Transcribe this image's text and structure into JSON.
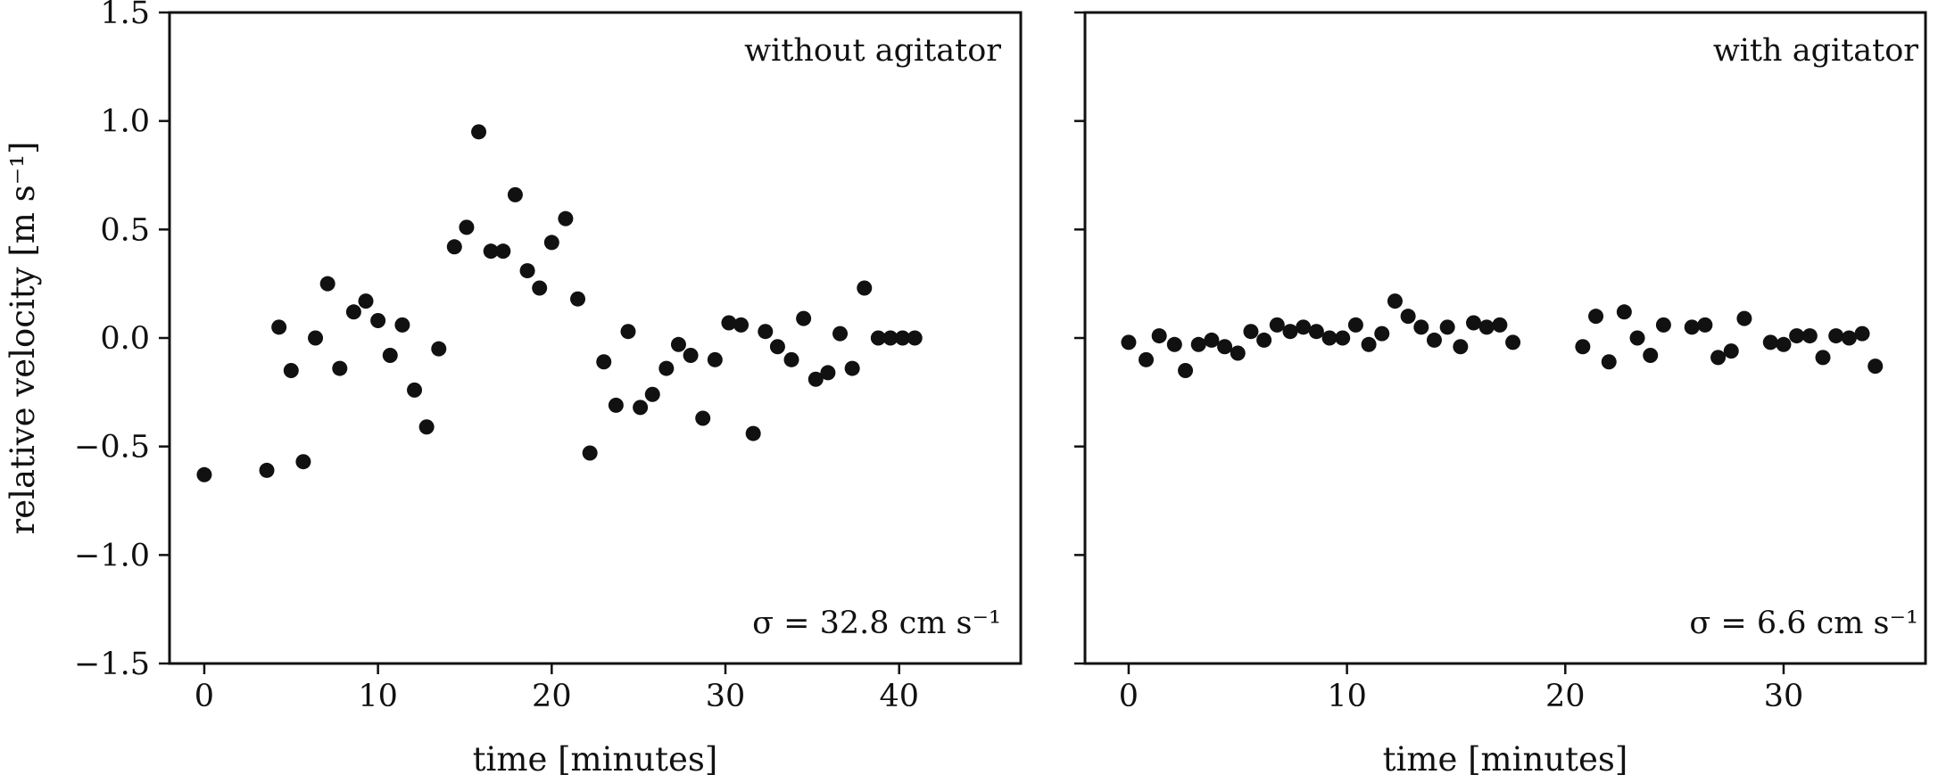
{
  "chart_data": [
    {
      "type": "scatter",
      "annotation_top": "without agitator",
      "annotation_bottom": "σ = 32.8 cm s⁻¹",
      "xlabel": "time [minutes]",
      "ylabel": "relative velocity [m s⁻¹]",
      "xlim": [
        -2.0,
        47.0
      ],
      "ylim": [
        -1.5,
        1.5
      ],
      "xticks": [
        0,
        10,
        20,
        30,
        40
      ],
      "xtick_labels": [
        "0",
        "10",
        "20",
        "30",
        "40"
      ],
      "yticks": [
        -1.5,
        -1.0,
        -0.5,
        0.0,
        0.5,
        1.0,
        1.5
      ],
      "ytick_labels": [
        "−1.5",
        "−1.0",
        "−0.5",
        "0.0",
        "0.5",
        "1.0",
        "1.5"
      ],
      "marker_color": "#111111",
      "x": [
        0.0,
        3.6,
        4.3,
        5.0,
        5.7,
        6.4,
        7.1,
        7.8,
        8.6,
        9.3,
        10.0,
        10.7,
        11.4,
        12.1,
        12.8,
        13.5,
        14.4,
        15.1,
        15.8,
        16.5,
        17.2,
        17.9,
        18.6,
        19.3,
        20.0,
        20.8,
        21.5,
        22.2,
        23.0,
        23.7,
        24.4,
        25.1,
        25.8,
        26.6,
        27.3,
        28.0,
        28.7,
        29.4,
        30.2,
        30.9,
        31.6,
        32.3,
        33.0,
        33.8,
        34.5,
        35.2,
        35.9,
        36.6,
        37.3,
        38.0,
        38.8,
        39.5,
        40.2,
        40.9
      ],
      "y": [
        -0.63,
        -0.61,
        0.05,
        -0.15,
        -0.57,
        0.0,
        0.25,
        -0.14,
        0.12,
        0.17,
        0.08,
        -0.08,
        0.06,
        -0.24,
        -0.41,
        -0.05,
        0.42,
        0.51,
        0.95,
        0.4,
        0.4,
        0.66,
        0.31,
        0.23,
        0.44,
        0.55,
        0.18,
        -0.53,
        -0.11,
        -0.31,
        0.03,
        -0.32,
        -0.26,
        -0.14,
        -0.03,
        -0.08,
        -0.37,
        -0.1,
        0.07,
        0.06,
        -0.44,
        0.03,
        -0.04,
        -0.1,
        0.09,
        -0.19,
        -0.16,
        0.02,
        -0.14,
        0.23,
        0.0,
        0.0,
        0.0,
        0.0
      ]
    },
    {
      "type": "scatter",
      "annotation_top": "with agitator",
      "annotation_bottom": "σ = 6.6 cm s⁻¹",
      "xlabel": "time [minutes]",
      "ylabel": "",
      "xlim": [
        -2.0,
        36.5
      ],
      "ylim": [
        -1.5,
        1.5
      ],
      "xticks": [
        0,
        10,
        20,
        30
      ],
      "xtick_labels": [
        "0",
        "10",
        "20",
        "30"
      ],
      "yticks": [
        -1.5,
        -1.0,
        -0.5,
        0.0,
        0.5,
        1.0,
        1.5
      ],
      "ytick_labels": [],
      "marker_color": "#111111",
      "x": [
        0.0,
        0.8,
        1.4,
        2.1,
        2.6,
        3.2,
        3.8,
        4.4,
        5.0,
        5.6,
        6.2,
        6.8,
        7.4,
        8.0,
        8.6,
        9.2,
        9.8,
        10.4,
        11.0,
        11.6,
        12.2,
        12.8,
        13.4,
        14.0,
        14.6,
        15.2,
        15.8,
        16.4,
        17.0,
        17.6,
        20.8,
        21.4,
        22.0,
        22.7,
        23.3,
        23.9,
        24.5,
        25.8,
        26.4,
        27.0,
        27.6,
        28.2,
        29.4,
        30.0,
        30.6,
        31.2,
        31.8,
        32.4,
        33.0,
        33.6,
        34.2
      ],
      "y": [
        -0.02,
        -0.1,
        0.01,
        -0.03,
        -0.15,
        -0.03,
        -0.01,
        -0.04,
        -0.07,
        0.03,
        -0.01,
        0.06,
        0.03,
        0.05,
        0.03,
        0.0,
        0.0,
        0.06,
        -0.03,
        0.02,
        0.17,
        0.1,
        0.05,
        -0.01,
        0.05,
        -0.04,
        0.07,
        0.05,
        0.06,
        -0.02,
        -0.04,
        0.1,
        -0.11,
        0.12,
        0.0,
        -0.08,
        0.06,
        0.05,
        0.06,
        -0.09,
        -0.06,
        0.09,
        -0.02,
        -0.03,
        0.01,
        0.01,
        -0.09,
        0.01,
        0.0,
        0.02,
        -0.13
      ]
    }
  ]
}
